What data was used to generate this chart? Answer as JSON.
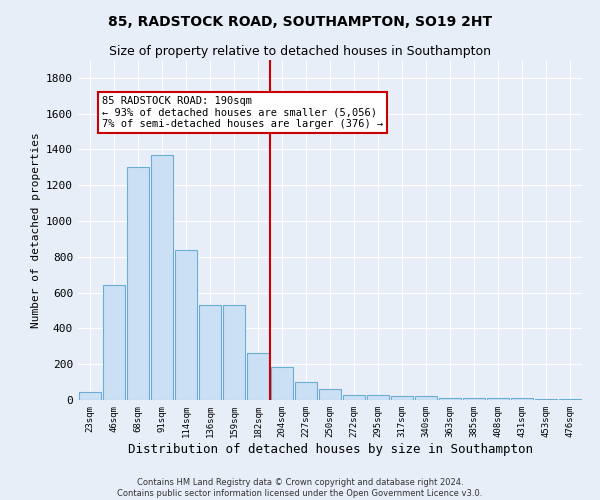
{
  "title": "85, RADSTOCK ROAD, SOUTHAMPTON, SO19 2HT",
  "subtitle": "Size of property relative to detached houses in Southampton",
  "xlabel": "Distribution of detached houses by size in Southampton",
  "ylabel": "Number of detached properties",
  "footer_line1": "Contains HM Land Registry data © Crown copyright and database right 2024.",
  "footer_line2": "Contains public sector information licensed under the Open Government Licence v3.0.",
  "categories": [
    "23sqm",
    "46sqm",
    "68sqm",
    "91sqm",
    "114sqm",
    "136sqm",
    "159sqm",
    "182sqm",
    "204sqm",
    "227sqm",
    "250sqm",
    "272sqm",
    "295sqm",
    "317sqm",
    "340sqm",
    "363sqm",
    "385sqm",
    "408sqm",
    "431sqm",
    "453sqm",
    "476sqm"
  ],
  "values": [
    45,
    640,
    1300,
    1370,
    840,
    530,
    530,
    265,
    185,
    100,
    60,
    30,
    30,
    25,
    20,
    12,
    10,
    10,
    10,
    8,
    8
  ],
  "bar_color": "#cce0f5",
  "bar_edge_color": "#6aadd5",
  "vline_color": "#cc0000",
  "annotation_text": "85 RADSTOCK ROAD: 190sqm\n← 93% of detached houses are smaller (5,056)\n7% of semi-detached houses are larger (376) →",
  "annotation_box_color": "#cc0000",
  "ylim": [
    0,
    1900
  ],
  "yticks": [
    0,
    200,
    400,
    600,
    800,
    1000,
    1200,
    1400,
    1600,
    1800
  ],
  "background_color": "#e8eef8",
  "plot_bg_color": "#e8eef8",
  "grid_color": "#ffffff",
  "title_fontsize": 10,
  "subtitle_fontsize": 9,
  "ylabel_fontsize": 8,
  "xlabel_fontsize": 9
}
